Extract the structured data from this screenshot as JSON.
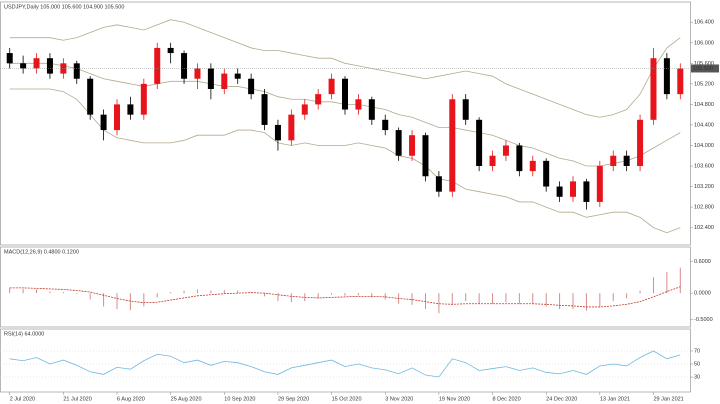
{
  "chart_data": [
    {
      "type": "candlestick",
      "title": "USDJPY,Daily  105.000 105.600 104.900 105.500",
      "up_color": "#e8141c",
      "down_color": "#000000",
      "open": [
        105.8,
        105.6,
        105.5,
        105.7,
        105.4,
        105.6,
        105.3,
        104.6,
        104.3,
        104.8,
        104.6,
        105.2,
        105.9,
        105.8,
        105.3,
        105.5,
        105.1,
        105.4,
        105.3,
        105.0,
        104.4,
        104.1,
        104.6,
        104.8,
        105.0,
        105.3,
        104.7,
        104.9,
        104.5,
        104.3,
        103.8,
        104.2,
        103.4,
        103.1,
        104.9,
        104.5,
        103.6,
        103.8,
        104.0,
        103.5,
        103.7,
        103.2,
        103.0,
        103.3,
        102.9,
        103.6,
        103.8,
        103.6,
        104.5,
        105.7,
        105.0
      ],
      "high": [
        105.9,
        105.75,
        105.8,
        105.8,
        105.7,
        105.65,
        105.35,
        104.7,
        104.9,
        104.95,
        105.3,
        106.0,
        106.0,
        105.85,
        105.6,
        105.6,
        105.5,
        105.5,
        105.4,
        105.1,
        104.5,
        104.7,
        104.9,
        105.1,
        105.4,
        105.35,
        105.0,
        104.95,
        104.6,
        104.35,
        104.3,
        104.25,
        103.5,
        105.0,
        105.0,
        104.55,
        103.9,
        104.1,
        104.05,
        103.8,
        103.75,
        103.3,
        103.4,
        103.35,
        103.7,
        103.9,
        103.9,
        104.6,
        105.9,
        105.8,
        105.6
      ],
      "low": [
        105.5,
        105.4,
        105.4,
        105.3,
        105.3,
        105.2,
        104.5,
        104.1,
        104.2,
        104.5,
        104.5,
        105.1,
        105.6,
        105.2,
        105.1,
        104.9,
        105.0,
        105.2,
        104.9,
        104.3,
        103.9,
        104.0,
        104.5,
        104.7,
        104.9,
        104.6,
        104.6,
        104.4,
        104.2,
        103.7,
        103.7,
        103.3,
        103.0,
        103.0,
        104.4,
        103.5,
        103.5,
        103.7,
        103.4,
        103.4,
        103.1,
        102.9,
        102.9,
        102.75,
        102.8,
        103.5,
        103.5,
        103.5,
        104.4,
        104.9,
        104.9
      ],
      "close": [
        105.6,
        105.5,
        105.7,
        105.4,
        105.6,
        105.3,
        104.6,
        104.3,
        104.8,
        104.6,
        105.2,
        105.9,
        105.8,
        105.3,
        105.5,
        105.1,
        105.4,
        105.3,
        105.0,
        104.4,
        104.1,
        104.6,
        104.8,
        105.0,
        105.3,
        104.7,
        104.9,
        104.5,
        104.3,
        103.8,
        104.2,
        103.4,
        103.1,
        104.9,
        104.5,
        103.6,
        103.8,
        104.0,
        103.5,
        103.7,
        103.2,
        103.0,
        103.3,
        102.9,
        103.6,
        103.8,
        103.6,
        104.5,
        105.7,
        105.0,
        105.5
      ],
      "series": [
        {
          "color": "#b3a98a",
          "values": [
            106.1,
            106.1,
            106.1,
            106.1,
            106.05,
            106.1,
            106.2,
            106.3,
            106.35,
            106.3,
            106.25,
            106.35,
            106.45,
            106.4,
            106.3,
            106.2,
            106.1,
            106.0,
            105.9,
            105.85,
            105.85,
            105.8,
            105.75,
            105.7,
            105.7,
            105.6,
            105.55,
            105.5,
            105.45,
            105.4,
            105.35,
            105.3,
            105.35,
            105.4,
            105.45,
            105.4,
            105.35,
            105.2,
            105.1,
            105.0,
            104.9,
            104.8,
            104.7,
            104.6,
            104.55,
            104.6,
            104.7,
            105.0,
            105.5,
            105.9,
            106.1
          ]
        },
        {
          "color": "#b3a98a",
          "values": [
            105.6,
            105.6,
            105.6,
            105.6,
            105.55,
            105.5,
            105.4,
            105.3,
            105.25,
            105.2,
            105.15,
            105.2,
            105.25,
            105.25,
            105.25,
            105.2,
            105.15,
            105.15,
            105.1,
            105.05,
            104.95,
            104.9,
            104.9,
            104.85,
            104.85,
            104.8,
            104.8,
            104.75,
            104.7,
            104.6,
            104.55,
            104.45,
            104.35,
            104.35,
            104.3,
            104.25,
            104.2,
            104.1,
            104.0,
            103.95,
            103.85,
            103.75,
            103.7,
            103.6,
            103.6,
            103.65,
            103.7,
            103.8,
            103.95,
            104.1,
            104.25
          ]
        },
        {
          "color": "#b3a98a",
          "values": [
            105.1,
            105.1,
            105.1,
            105.1,
            105.05,
            104.9,
            104.6,
            104.3,
            104.15,
            104.1,
            104.05,
            104.05,
            104.05,
            104.1,
            104.2,
            104.2,
            104.2,
            104.3,
            104.3,
            104.25,
            104.05,
            104.0,
            104.05,
            104.0,
            104.0,
            104.0,
            104.05,
            104.0,
            103.95,
            103.8,
            103.75,
            103.6,
            103.35,
            103.3,
            103.15,
            103.1,
            103.05,
            103.0,
            102.9,
            102.9,
            102.8,
            102.7,
            102.7,
            102.6,
            102.65,
            102.7,
            102.7,
            102.6,
            102.4,
            102.3,
            102.4
          ]
        }
      ],
      "last_price": 105.5,
      "last_price_label": "105.500",
      "ylim": [
        102.1,
        106.6
      ],
      "yticks": [
        {
          "value": 102.4,
          "label": "102.400"
        },
        {
          "value": 102.8,
          "label": "102.800"
        },
        {
          "value": 103.2,
          "label": "103.200"
        },
        {
          "value": 103.6,
          "label": "103.600"
        },
        {
          "value": 104.0,
          "label": "104.000"
        },
        {
          "value": 104.4,
          "label": "104.400"
        },
        {
          "value": 104.8,
          "label": "104.800"
        },
        {
          "value": 105.2,
          "label": "105.200"
        },
        {
          "value": 105.6,
          "label": "105.600"
        },
        {
          "value": 106.0,
          "label": "106.000"
        },
        {
          "value": 106.4,
          "label": "106.400"
        }
      ],
      "xticks": [
        {
          "value": 0,
          "label": "2 Jul 2020"
        },
        {
          "value": 4,
          "label": "21 Jul 2020"
        },
        {
          "value": 8,
          "label": "6 Aug 2020"
        },
        {
          "value": 12,
          "label": "25 Aug 2020"
        },
        {
          "value": 16,
          "label": "10 Sep 2020"
        },
        {
          "value": 20,
          "label": "29 Sep 2020"
        },
        {
          "value": 24,
          "label": "15 Oct 2020"
        },
        {
          "value": 28,
          "label": "3 Nov 2020"
        },
        {
          "value": 32,
          "label": "19 Nov 2020"
        },
        {
          "value": 36,
          "label": "8 Dec 2020"
        },
        {
          "value": 40,
          "label": "24 Dec 2020"
        },
        {
          "value": 44,
          "label": "13 Jan 2021"
        },
        {
          "value": 48,
          "label": "29 Jan 2021"
        }
      ]
    },
    {
      "type": "macd",
      "title": "MACD(12,26,9) 0.4800 0.1200",
      "histogram": {
        "color": "#d98a8a",
        "values": [
          0.1,
          0.08,
          0.07,
          0.03,
          0.02,
          -0.02,
          -0.12,
          -0.25,
          -0.3,
          -0.32,
          -0.25,
          -0.08,
          0.02,
          0.05,
          0.07,
          0.05,
          0.06,
          0.05,
          0.02,
          -0.06,
          -0.15,
          -0.17,
          -0.15,
          -0.1,
          -0.03,
          -0.05,
          -0.04,
          -0.08,
          -0.12,
          -0.2,
          -0.22,
          -0.3,
          -0.38,
          -0.22,
          -0.15,
          -0.2,
          -0.2,
          -0.17,
          -0.2,
          -0.2,
          -0.25,
          -0.3,
          -0.3,
          -0.33,
          -0.25,
          -0.15,
          -0.1,
          0.05,
          0.3,
          0.4,
          0.48
        ]
      },
      "signal": {
        "color": "#c0392b",
        "values": [
          0.1,
          0.1,
          0.09,
          0.08,
          0.07,
          0.05,
          0.02,
          -0.04,
          -0.1,
          -0.15,
          -0.18,
          -0.17,
          -0.13,
          -0.09,
          -0.05,
          -0.03,
          -0.01,
          0.0,
          0.01,
          0.0,
          -0.03,
          -0.06,
          -0.08,
          -0.09,
          -0.08,
          -0.07,
          -0.06,
          -0.06,
          -0.07,
          -0.1,
          -0.12,
          -0.16,
          -0.2,
          -0.21,
          -0.2,
          -0.2,
          -0.2,
          -0.2,
          -0.2,
          -0.2,
          -0.21,
          -0.23,
          -0.24,
          -0.26,
          -0.26,
          -0.24,
          -0.21,
          -0.16,
          -0.07,
          0.03,
          0.12
        ]
      },
      "ylim": [
        -0.6,
        0.7
      ],
      "yticks": [
        {
          "value": 0.6,
          "label": "0.6000"
        },
        {
          "value": 0,
          "label": "0.0000"
        },
        {
          "value": -0.5,
          "label": "-0.5000"
        }
      ]
    },
    {
      "type": "line",
      "title": "RSI(14) 64.0000",
      "grid": true,
      "series": [
        {
          "color": "#6fb7e0",
          "values": [
            58,
            55,
            60,
            50,
            56,
            48,
            38,
            34,
            45,
            42,
            55,
            65,
            62,
            52,
            56,
            48,
            54,
            52,
            46,
            38,
            34,
            44,
            48,
            52,
            56,
            46,
            50,
            44,
            41,
            35,
            44,
            33,
            30,
            58,
            52,
            40,
            43,
            46,
            40,
            44,
            37,
            35,
            40,
            34,
            47,
            50,
            47,
            60,
            70,
            58,
            64
          ]
        }
      ],
      "ylim": [
        10,
        90
      ],
      "yticks": [
        30,
        50,
        70
      ]
    }
  ]
}
